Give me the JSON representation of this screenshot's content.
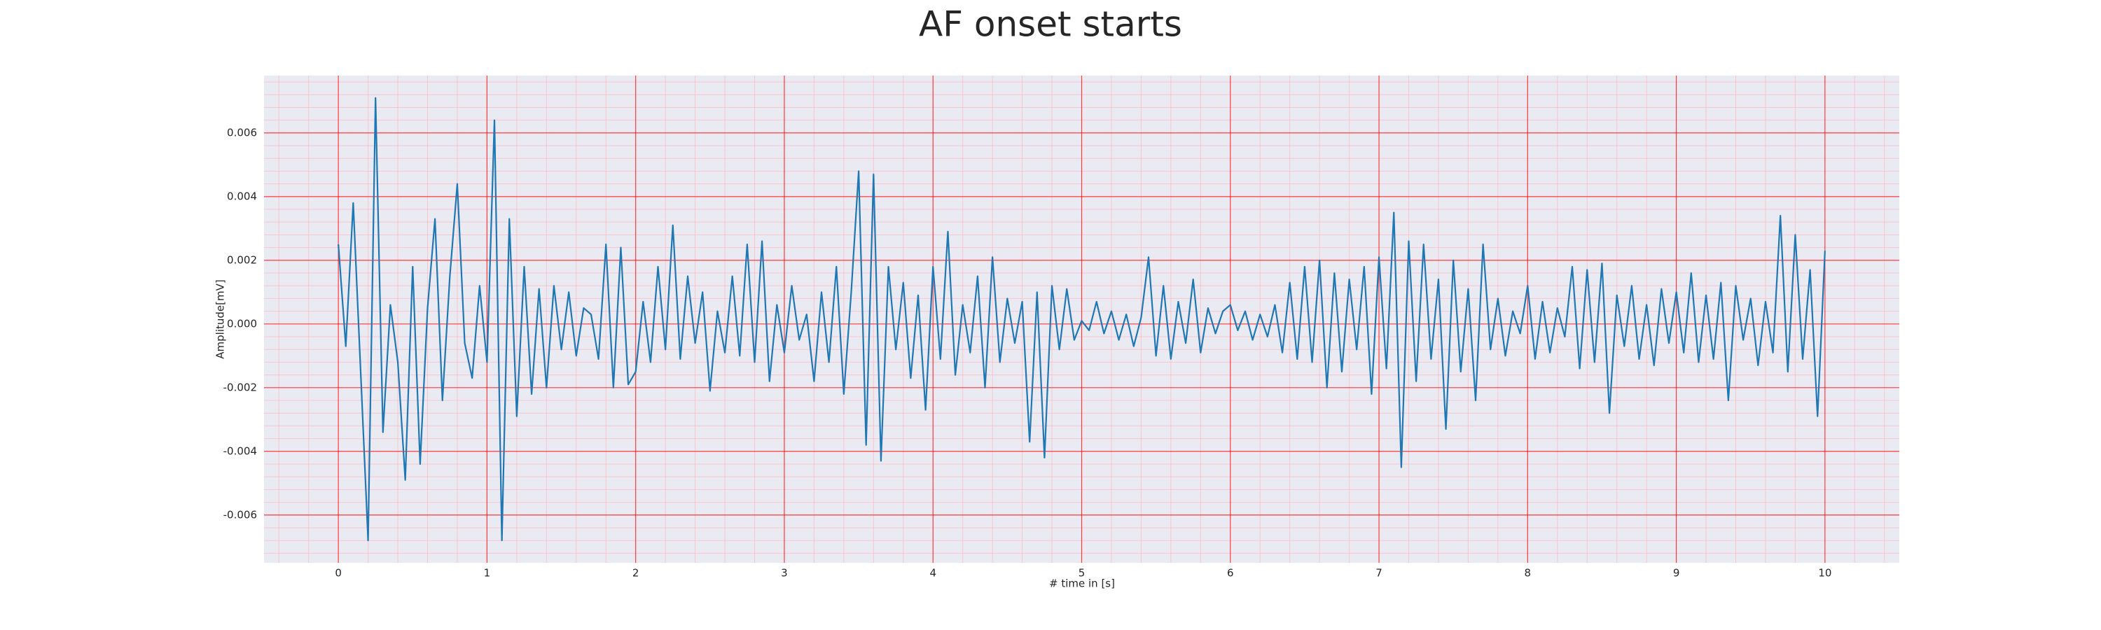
{
  "chart_data": {
    "type": "line",
    "title": "AF onset starts",
    "xlabel": "# time in [s]",
    "ylabel": "Amplitude[mV]",
    "color": "#1f77b4",
    "background": "#eaeaf2",
    "grid": true,
    "grid_color": "#ff0000",
    "minor_grid": true,
    "minor_grid_color": "#ffb6c1",
    "xlim": [
      -0.5,
      10.5
    ],
    "ylim": [
      -0.0075,
      0.0078
    ],
    "xticks": [
      0,
      1,
      2,
      3,
      4,
      5,
      6,
      7,
      8,
      9,
      10
    ],
    "yticks": [
      -0.006,
      -0.004,
      -0.002,
      {
        "value": 0,
        "label": "0.000"
      },
      0.002,
      0.004,
      0.006
    ],
    "x": [
      0,
      0.05,
      0.1,
      0.15,
      0.2,
      0.25,
      0.3,
      0.35,
      0.4,
      0.45,
      0.5,
      0.55,
      0.6,
      0.65,
      0.7,
      0.75,
      0.8,
      0.85,
      0.9,
      0.95,
      1,
      1.05,
      1.1,
      1.15,
      1.2,
      1.25,
      1.3,
      1.35,
      1.4,
      1.45,
      1.5,
      1.55,
      1.6,
      1.65,
      1.7,
      1.75,
      1.8,
      1.85,
      1.9,
      1.95,
      2,
      2.05,
      2.1,
      2.15,
      2.2,
      2.25,
      2.3,
      2.35,
      2.4,
      2.45,
      2.5,
      2.55,
      2.6,
      2.65,
      2.7,
      2.75,
      2.8,
      2.85,
      2.9,
      2.95,
      3,
      3.05,
      3.1,
      3.15,
      3.2,
      3.25,
      3.3,
      3.35,
      3.4,
      3.45,
      3.5,
      3.55,
      3.6,
      3.65,
      3.7,
      3.75,
      3.8,
      3.85,
      3.9,
      3.95,
      4,
      4.05,
      4.1,
      4.15,
      4.2,
      4.25,
      4.3,
      4.35,
      4.4,
      4.45,
      4.5,
      4.55,
      4.6,
      4.65,
      4.7,
      4.75,
      4.8,
      4.85,
      4.9,
      4.95,
      5,
      5.05,
      5.1,
      5.15,
      5.2,
      5.25,
      5.3,
      5.35,
      5.4,
      5.45,
      5.5,
      5.55,
      5.6,
      5.65,
      5.7,
      5.75,
      5.8,
      5.85,
      5.9,
      5.95,
      6,
      6.05,
      6.1,
      6.15,
      6.2,
      6.25,
      6.3,
      6.35,
      6.4,
      6.45,
      6.5,
      6.55,
      6.6,
      6.65,
      6.7,
      6.75,
      6.8,
      6.85,
      6.9,
      6.95,
      7,
      7.05,
      7.1,
      7.15,
      7.2,
      7.25,
      7.3,
      7.35,
      7.4,
      7.45,
      7.5,
      7.55,
      7.6,
      7.65,
      7.7,
      7.75,
      7.8,
      7.85,
      7.9,
      7.95,
      8,
      8.05,
      8.1,
      8.15,
      8.2,
      8.25,
      8.3,
      8.35,
      8.4,
      8.45,
      8.5,
      8.55,
      8.6,
      8.65,
      8.7,
      8.75,
      8.8,
      8.85,
      8.9,
      8.95,
      9,
      9.05,
      9.1,
      9.15,
      9.2,
      9.25,
      9.3,
      9.35,
      9.4,
      9.45,
      9.5,
      9.55,
      9.6,
      9.65,
      9.7,
      9.75,
      9.8,
      9.85,
      9.9,
      9.95,
      10
    ],
    "values": [
      0.0025,
      -0.0007,
      0.0038,
      -0.0015,
      -0.0068,
      0.0071,
      -0.0034,
      0.0006,
      -0.0012,
      -0.0049,
      0.0018,
      -0.0044,
      0.0005,
      0.0033,
      -0.0024,
      0.0015,
      0.0044,
      -0.0006,
      -0.0017,
      0.0012,
      -0.0012,
      0.0064,
      -0.0068,
      0.0033,
      -0.0029,
      0.0018,
      -0.0022,
      0.0011,
      -0.002,
      0.0012,
      -0.0008,
      0.001,
      -0.001,
      0.0005,
      0.0003,
      -0.0011,
      0.0025,
      -0.002,
      0.0024,
      -0.0019,
      -0.0015,
      0.0007,
      -0.0012,
      0.0018,
      -0.0008,
      0.0031,
      -0.0011,
      0.0015,
      -0.0006,
      0.001,
      -0.0021,
      0.0004,
      -0.0009,
      0.0015,
      -0.001,
      0.0025,
      -0.0012,
      0.0026,
      -0.0018,
      0.0006,
      -0.0009,
      0.0012,
      -0.0005,
      0.0003,
      -0.0018,
      0.001,
      -0.0012,
      0.0018,
      -0.0022,
      0.001,
      0.0048,
      -0.0038,
      0.0047,
      -0.0043,
      0.0018,
      -0.0008,
      0.0013,
      -0.0017,
      0.0009,
      -0.0027,
      0.0018,
      -0.0011,
      0.0029,
      -0.0016,
      0.0006,
      -0.0009,
      0.0015,
      -0.002,
      0.0021,
      -0.0012,
      0.0008,
      -0.0006,
      0.0007,
      -0.0037,
      0.001,
      -0.0042,
      0.0012,
      -0.0008,
      0.0011,
      -0.0005,
      0.0001,
      -0.0002,
      0.0007,
      -0.0003,
      0.0004,
      -0.0005,
      0.0003,
      -0.0007,
      0.0002,
      0.0021,
      -0.001,
      0.0012,
      -0.0011,
      0.0007,
      -0.0006,
      0.0014,
      -0.0009,
      0.0005,
      -0.0003,
      0.0004,
      0.0006,
      -0.0002,
      0.0004,
      -0.0005,
      0.0003,
      -0.0004,
      0.0006,
      -0.0009,
      0.0013,
      -0.0011,
      0.0018,
      -0.0012,
      0.002,
      -0.002,
      0.0016,
      -0.0015,
      0.0014,
      -0.0008,
      0.0018,
      -0.0022,
      0.0021,
      -0.0014,
      0.0035,
      -0.0045,
      0.0026,
      -0.0018,
      0.0025,
      -0.0011,
      0.0014,
      -0.0033,
      0.002,
      -0.0015,
      0.0011,
      -0.0024,
      0.0025,
      -0.0008,
      0.0008,
      -0.001,
      0.0004,
      -0.0003,
      0.0012,
      -0.0011,
      0.0007,
      -0.0009,
      0.0005,
      -0.0004,
      0.0018,
      -0.0014,
      0.0017,
      -0.0012,
      0.0019,
      -0.0028,
      0.0009,
      -0.0007,
      0.0012,
      -0.0011,
      0.0006,
      -0.0013,
      0.0011,
      -0.0006,
      0.001,
      -0.0009,
      0.0016,
      -0.0012,
      0.0009,
      -0.0011,
      0.0013,
      -0.0024,
      0.0012,
      -0.0005,
      0.0008,
      -0.0013,
      0.0007,
      -0.0009,
      0.0034,
      -0.0015,
      0.0028,
      -0.0011,
      0.0017,
      -0.0029,
      0.0023
    ]
  }
}
